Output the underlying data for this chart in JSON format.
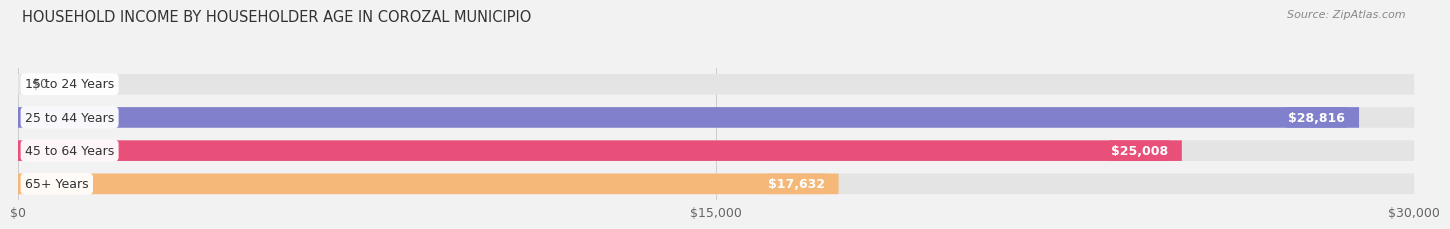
{
  "title": "HOUSEHOLD INCOME BY HOUSEHOLDER AGE IN COROZAL MUNICIPIO",
  "source": "Source: ZipAtlas.com",
  "categories": [
    "15 to 24 Years",
    "25 to 44 Years",
    "45 to 64 Years",
    "65+ Years"
  ],
  "values": [
    0,
    28816,
    25008,
    17632
  ],
  "bar_colors": [
    "#5ecfcf",
    "#8080cc",
    "#e8507a",
    "#f5b878"
  ],
  "bg_color": "#f2f2f2",
  "bar_bg_color": "#e4e4e4",
  "xlim": [
    0,
    30000
  ],
  "xticks": [
    0,
    15000,
    30000
  ],
  "xticklabels": [
    "$0",
    "$15,000",
    "$30,000"
  ],
  "label_color_zero": "#555555",
  "label_color_nonzero": "#ffffff",
  "title_fontsize": 10.5,
  "source_fontsize": 8,
  "tick_fontsize": 9,
  "bar_label_fontsize": 9,
  "category_fontsize": 9
}
